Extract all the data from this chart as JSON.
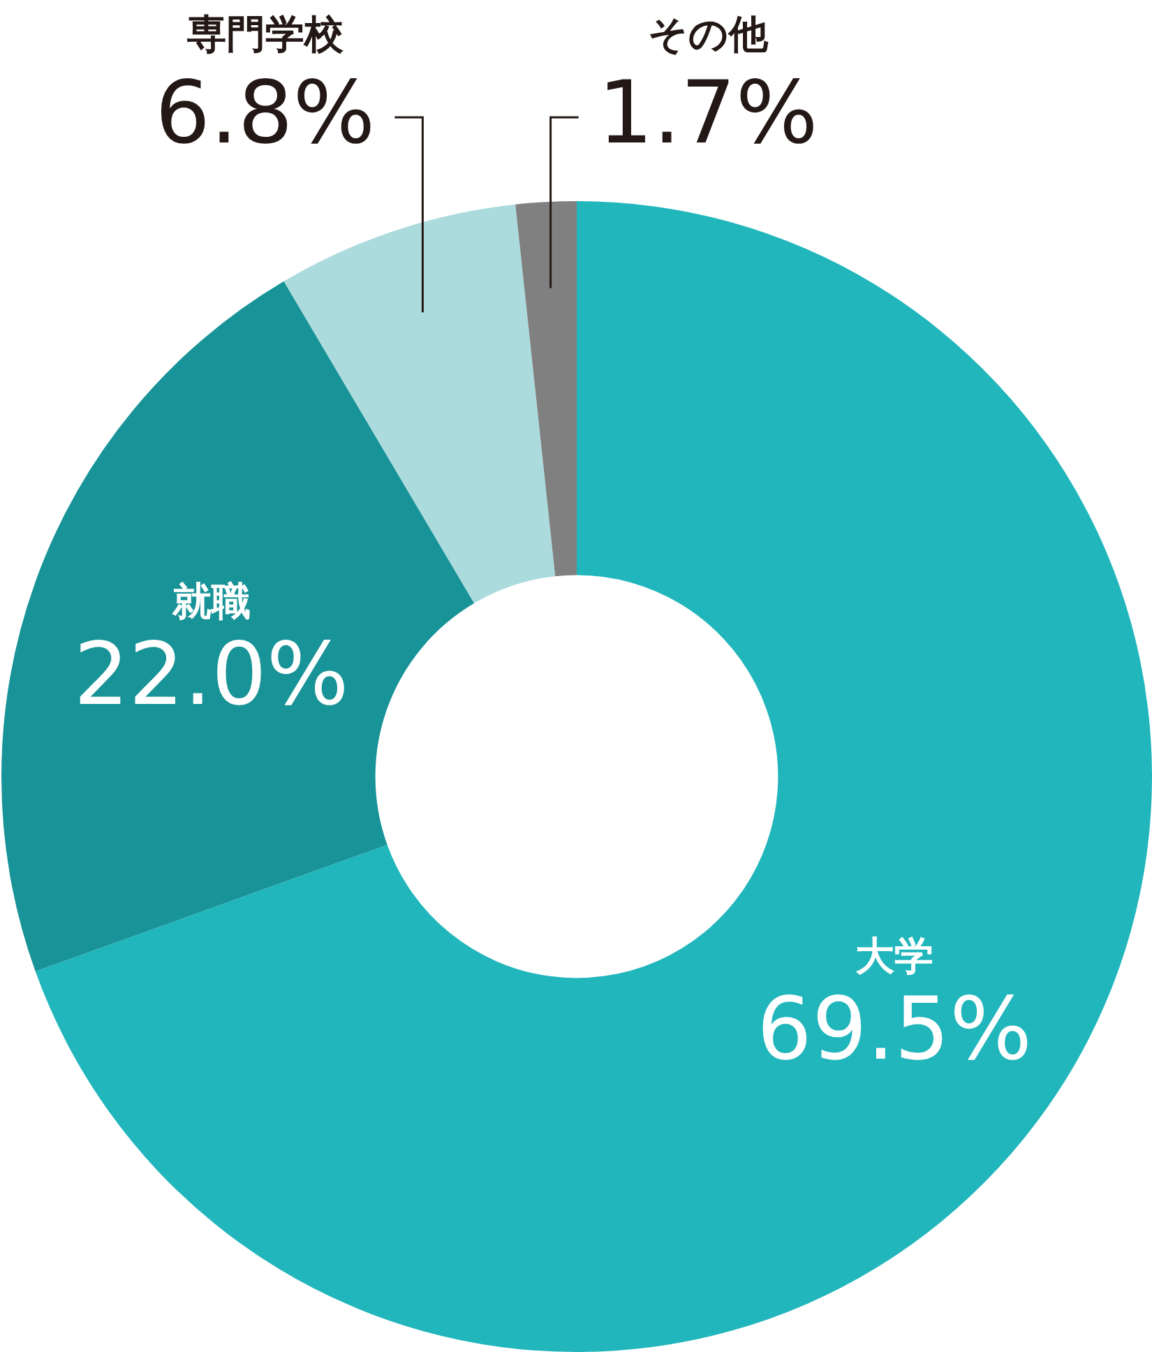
{
  "chart_data": {
    "type": "donut",
    "categories": [
      "大学",
      "就職",
      "専門学校",
      "その他"
    ],
    "values": [
      69.5,
      22.0,
      6.8,
      1.7
    ],
    "value_labels": [
      "69.5%",
      "22.0%",
      "6.8%",
      "1.7%"
    ],
    "colors": [
      "#20b6bc",
      "#189397",
      "#acdbde",
      "#808080"
    ],
    "legend": false
  }
}
